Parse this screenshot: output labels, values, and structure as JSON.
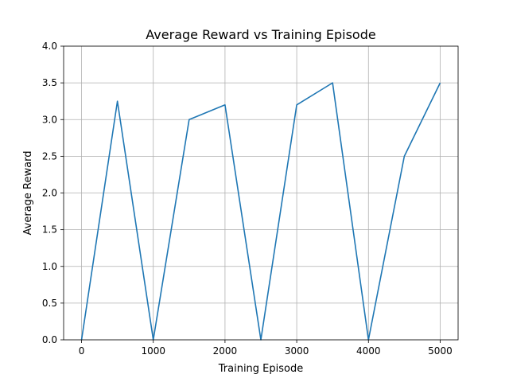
{
  "chart_data": {
    "type": "line",
    "title": "Average Reward vs Training Episode",
    "xlabel": "Training Episode",
    "ylabel": "Average Reward",
    "xlim": [
      -250,
      5250
    ],
    "ylim": [
      0.0,
      4.0
    ],
    "xticks": [
      0,
      1000,
      2000,
      3000,
      4000,
      5000
    ],
    "xtick_labels": [
      "0",
      "1000",
      "2000",
      "3000",
      "4000",
      "5000"
    ],
    "yticks": [
      0.0,
      0.5,
      1.0,
      1.5,
      2.0,
      2.5,
      3.0,
      3.5,
      4.0
    ],
    "ytick_labels": [
      "0.0",
      "0.5",
      "1.0",
      "1.5",
      "2.0",
      "2.5",
      "3.0",
      "3.5",
      "4.0"
    ],
    "grid": true,
    "series": [
      {
        "color": "#1f77b4",
        "x": [
          0,
          500,
          1000,
          1500,
          2000,
          2500,
          3000,
          3500,
          4000,
          4500,
          5000
        ],
        "y": [
          0.0,
          3.25,
          0.0,
          3.0,
          3.2,
          0.0,
          3.2,
          3.5,
          0.0,
          2.5,
          3.5
        ]
      }
    ]
  }
}
